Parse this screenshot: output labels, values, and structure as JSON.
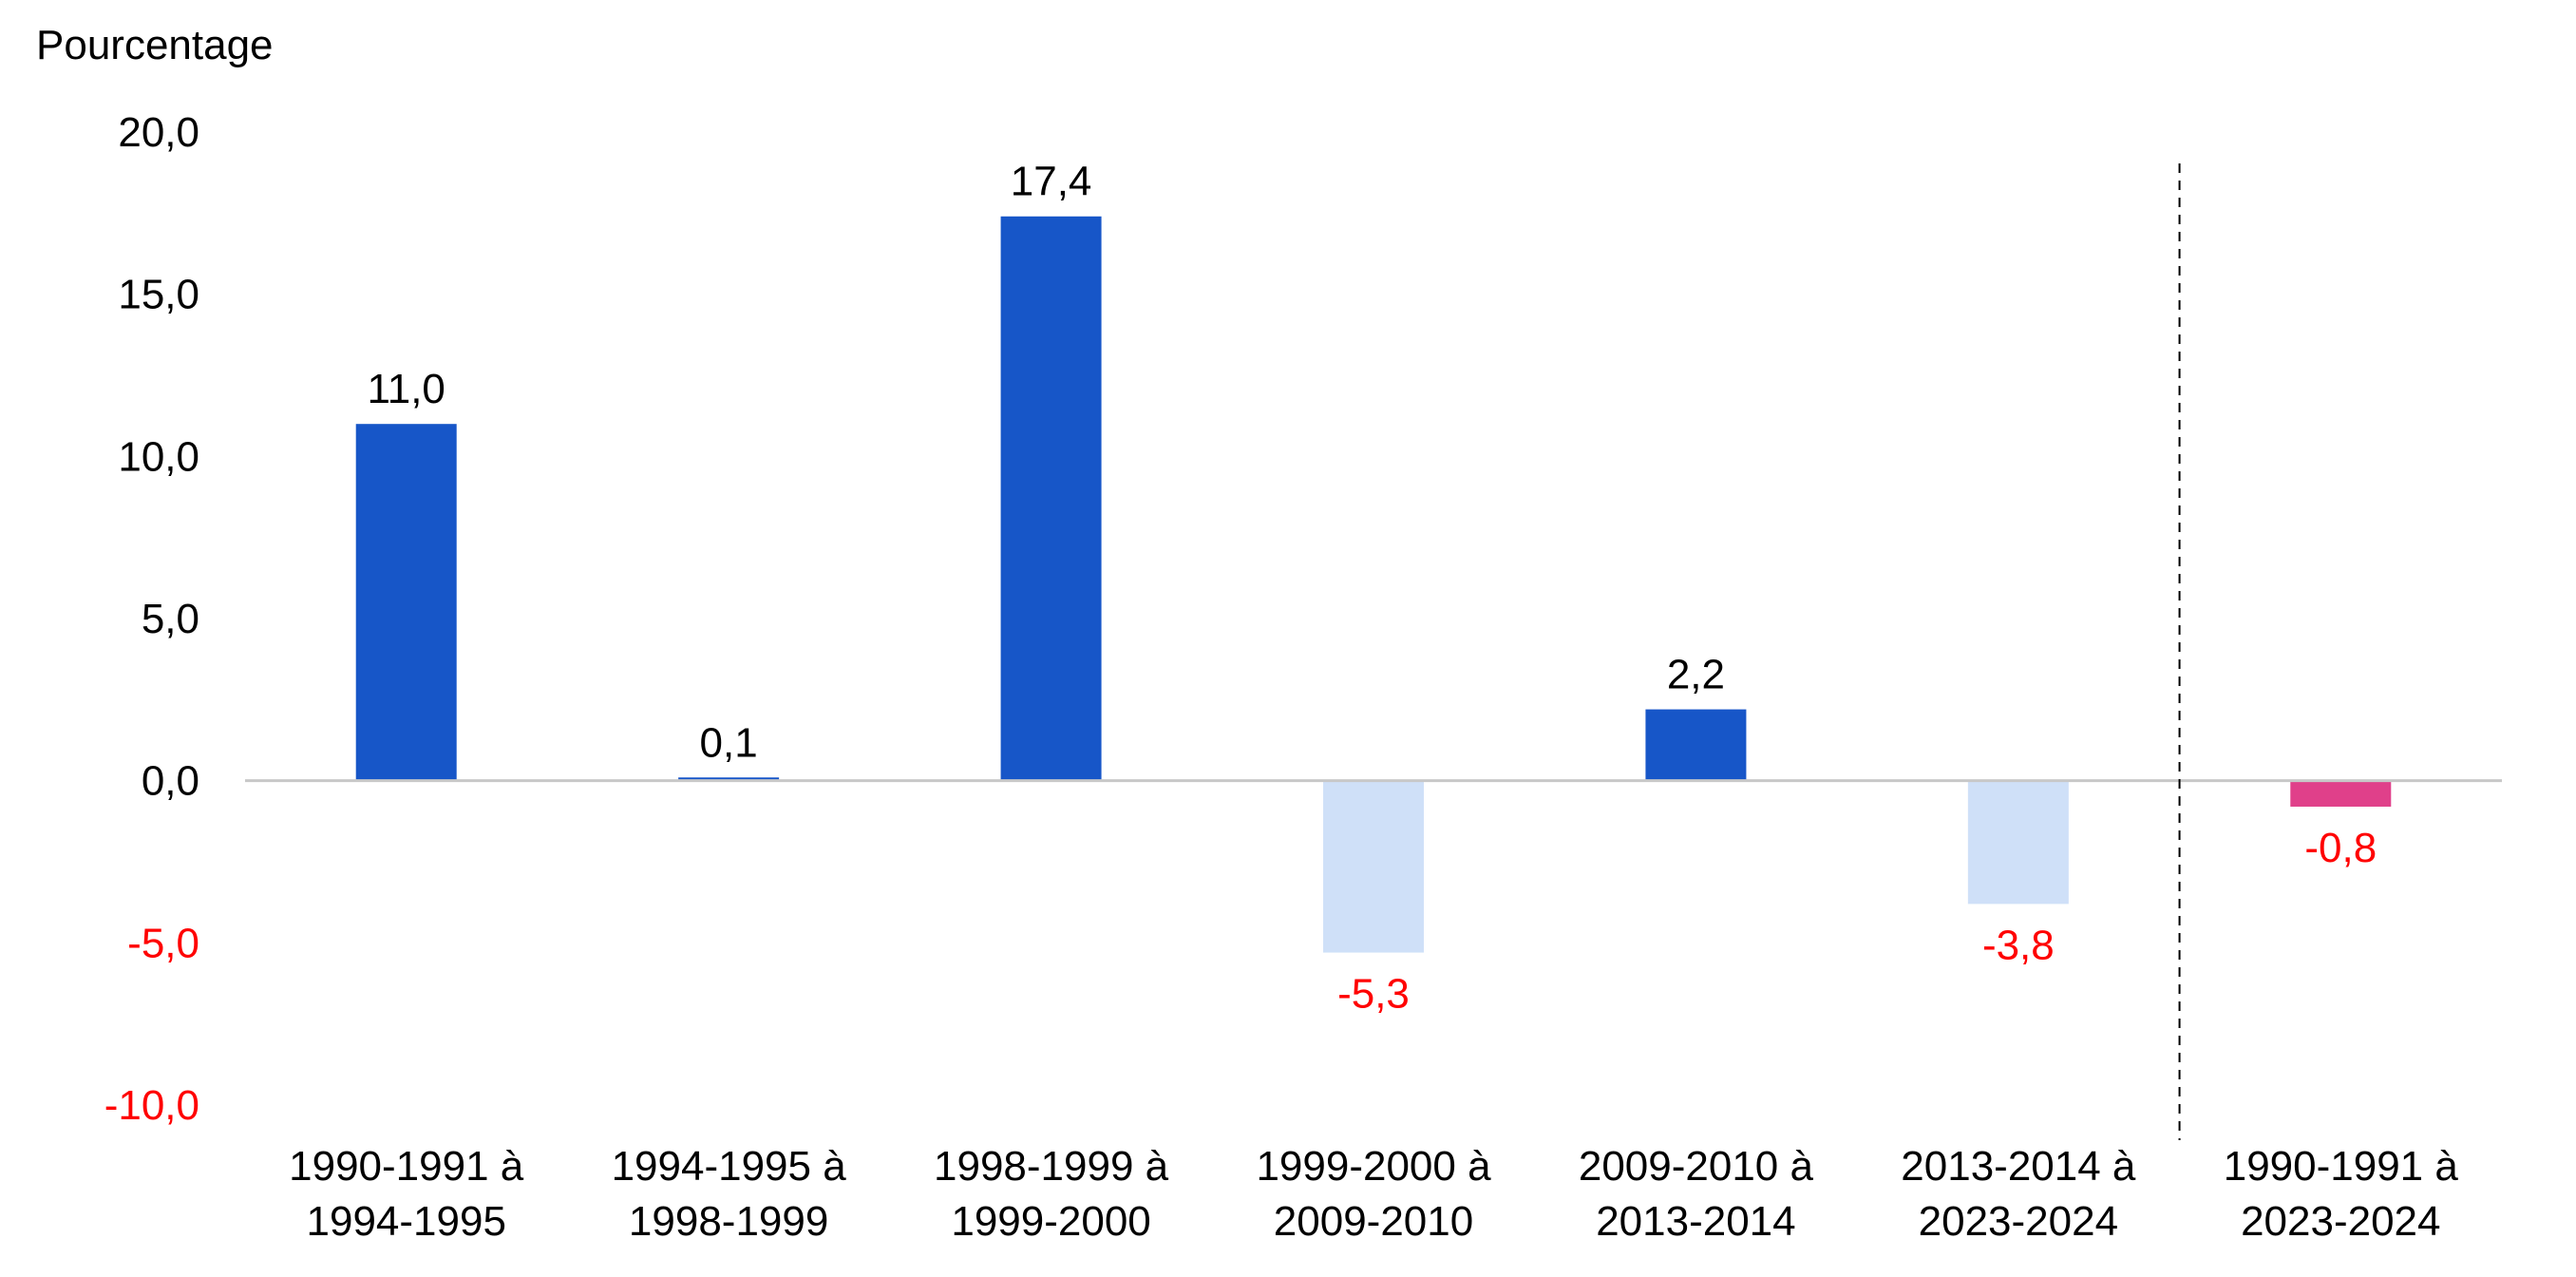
{
  "chart_data": {
    "type": "bar",
    "ylabel": "Pourcentage",
    "ylim": [
      -10,
      20
    ],
    "yticks": [
      {
        "value": 20,
        "label": "20,0"
      },
      {
        "value": 15,
        "label": "15,0"
      },
      {
        "value": 10,
        "label": "10,0"
      },
      {
        "value": 5,
        "label": "5,0"
      },
      {
        "value": 0,
        "label": "0,0"
      },
      {
        "value": -5,
        "label": "-5,0"
      },
      {
        "value": -10,
        "label": "-10,0"
      }
    ],
    "categories": [
      [
        "1990-1991 à",
        "1994-1995"
      ],
      [
        "1994-1995 à",
        "1998-1999"
      ],
      [
        "1998-1999 à",
        "1999-2000"
      ],
      [
        "1999-2000 à",
        "2009-2010"
      ],
      [
        "2009-2010 à",
        "2013-2014"
      ],
      [
        "2013-2014 à",
        "2023-2024"
      ],
      [
        "1990-1991 à",
        "2023-2024"
      ]
    ],
    "values": [
      11.0,
      0.1,
      17.4,
      -5.3,
      2.2,
      -3.8,
      -0.8
    ],
    "value_labels": [
      "11,0",
      "0,1",
      "17,4",
      "-5,3",
      "2,2",
      "-3,8",
      "-0,8"
    ],
    "separator_after_index": 5,
    "grid": false,
    "colors": {
      "positive_bar": "#1756C8",
      "negative_bar": "#CFE0F8",
      "total_bar": "#E0408A",
      "negative_text": "#FF0000",
      "text": "#000000",
      "axis_line": "#C8C8C8",
      "separator": "#000000"
    }
  }
}
